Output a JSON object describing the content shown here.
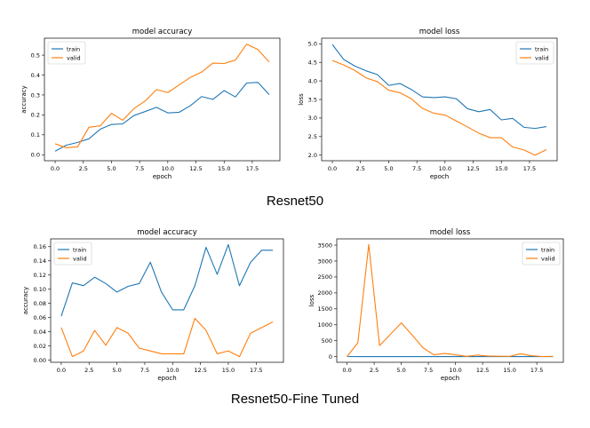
{
  "captions": {
    "top": "Resnet50",
    "bottom": "Resnet50-Fine Tuned"
  },
  "colors": {
    "train": "#1f77b4",
    "valid": "#ff7f0e"
  },
  "chart_data": [
    {
      "id": "r50-acc",
      "type": "line",
      "title": "model accuracy",
      "xlabel": "epoch",
      "ylabel": "accuracy",
      "xlim": [
        -0.95,
        19.95
      ],
      "ylim": [
        -0.03,
        0.585
      ],
      "xticks": [
        0.0,
        2.5,
        5.0,
        7.5,
        10.0,
        12.5,
        15.0,
        17.5
      ],
      "yticks": [
        0.0,
        0.1,
        0.2,
        0.3,
        0.4,
        0.5
      ],
      "ytick_decimals": 1,
      "legend": "upper-left",
      "x": [
        0,
        1,
        2,
        3,
        4,
        5,
        6,
        7,
        8,
        9,
        10,
        11,
        12,
        13,
        14,
        15,
        16,
        17,
        18,
        19
      ],
      "series": [
        {
          "name": "train",
          "values": [
            0.018,
            0.048,
            0.062,
            0.08,
            0.128,
            0.152,
            0.155,
            0.197,
            0.217,
            0.238,
            0.21,
            0.213,
            0.246,
            0.292,
            0.278,
            0.322,
            0.29,
            0.36,
            0.363,
            0.302
          ]
        },
        {
          "name": "valid",
          "values": [
            0.055,
            0.035,
            0.04,
            0.138,
            0.145,
            0.208,
            0.173,
            0.232,
            0.27,
            0.327,
            0.312,
            0.35,
            0.388,
            0.415,
            0.46,
            0.458,
            0.475,
            0.555,
            0.528,
            0.465
          ]
        }
      ]
    },
    {
      "id": "r50-loss",
      "type": "line",
      "title": "model loss",
      "xlabel": "epoch",
      "ylabel": "loss",
      "xlim": [
        -0.95,
        19.95
      ],
      "ylim": [
        1.85,
        5.15
      ],
      "xticks": [
        0.0,
        2.5,
        5.0,
        7.5,
        10.0,
        12.5,
        15.0,
        17.5
      ],
      "yticks": [
        2.0,
        2.5,
        3.0,
        3.5,
        4.0,
        4.5,
        5.0
      ],
      "ytick_decimals": 1,
      "legend": "upper-right",
      "x": [
        0,
        1,
        2,
        3,
        4,
        5,
        6,
        7,
        8,
        9,
        10,
        11,
        12,
        13,
        14,
        15,
        16,
        17,
        18,
        19
      ],
      "series": [
        {
          "name": "train",
          "values": [
            4.98,
            4.58,
            4.4,
            4.27,
            4.17,
            3.88,
            3.93,
            3.77,
            3.57,
            3.55,
            3.57,
            3.52,
            3.25,
            3.17,
            3.23,
            2.95,
            2.99,
            2.75,
            2.72,
            2.77
          ]
        },
        {
          "name": "valid",
          "values": [
            4.55,
            4.43,
            4.28,
            4.08,
            3.98,
            3.75,
            3.68,
            3.52,
            3.26,
            3.13,
            3.08,
            2.92,
            2.76,
            2.59,
            2.47,
            2.47,
            2.22,
            2.14,
            2.0,
            2.15
          ]
        }
      ]
    },
    {
      "id": "ft-acc",
      "type": "line",
      "title": "model accuracy",
      "xlabel": "epoch",
      "ylabel": "accuracy",
      "xlim": [
        -0.95,
        19.95
      ],
      "ylim": [
        -0.003,
        0.171
      ],
      "xticks": [
        0.0,
        2.5,
        5.0,
        7.5,
        10.0,
        12.5,
        15.0,
        17.5
      ],
      "yticks": [
        0.0,
        0.02,
        0.04,
        0.06,
        0.08,
        0.1,
        0.12,
        0.14,
        0.16
      ],
      "ytick_decimals": 2,
      "legend": "upper-left",
      "x": [
        0,
        1,
        2,
        3,
        4,
        5,
        6,
        7,
        8,
        9,
        10,
        11,
        12,
        13,
        14,
        15,
        16,
        17,
        18,
        19
      ],
      "series": [
        {
          "name": "train",
          "values": [
            0.062,
            0.109,
            0.105,
            0.117,
            0.108,
            0.096,
            0.104,
            0.108,
            0.138,
            0.096,
            0.071,
            0.071,
            0.105,
            0.159,
            0.121,
            0.163,
            0.105,
            0.138,
            0.155,
            0.155
          ]
        },
        {
          "name": "valid",
          "values": [
            0.046,
            0.005,
            0.013,
            0.042,
            0.021,
            0.046,
            0.038,
            0.017,
            0.013,
            0.009,
            0.009,
            0.009,
            0.059,
            0.042,
            0.009,
            0.013,
            0.005,
            0.038,
            0.046,
            0.054
          ]
        }
      ]
    },
    {
      "id": "ft-loss",
      "type": "line",
      "title": "model loss",
      "xlabel": "epoch",
      "ylabel": "loss",
      "xlim": [
        -0.95,
        19.95
      ],
      "ylim": [
        -176,
        3696
      ],
      "xticks": [
        0.0,
        2.5,
        5.0,
        7.5,
        10.0,
        12.5,
        15.0,
        17.5
      ],
      "yticks": [
        0,
        500,
        1000,
        1500,
        2000,
        2500,
        3000,
        3500
      ],
      "ytick_decimals": 0,
      "legend": "upper-right",
      "x": [
        0,
        1,
        2,
        3,
        4,
        5,
        6,
        7,
        8,
        9,
        10,
        11,
        12,
        13,
        14,
        15,
        16,
        17,
        18,
        19
      ],
      "series": [
        {
          "name": "train",
          "values": [
            5,
            3,
            3,
            3,
            3,
            3,
            3,
            3,
            3,
            3,
            3,
            3,
            3,
            3,
            3,
            3,
            3,
            3,
            3,
            3
          ]
        },
        {
          "name": "valid",
          "values": [
            5,
            440,
            3520,
            350,
            700,
            1060,
            680,
            280,
            60,
            100,
            60,
            10,
            50,
            20,
            15,
            10,
            90,
            30,
            5,
            10
          ]
        }
      ]
    }
  ]
}
